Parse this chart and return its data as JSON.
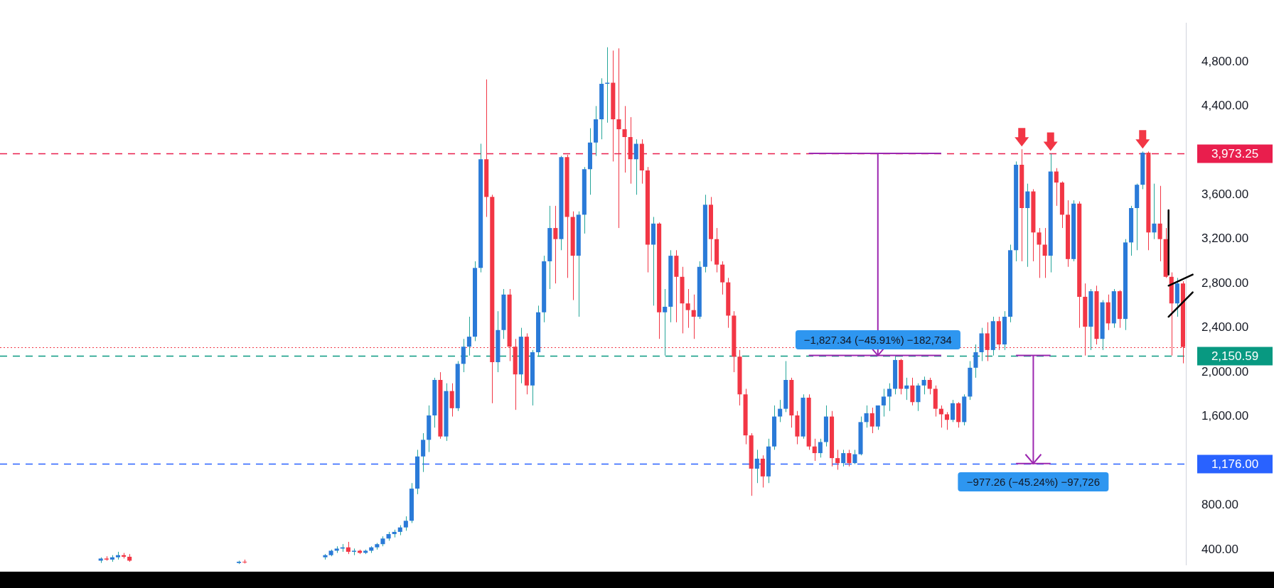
{
  "chart_data": {
    "type": "candlestick",
    "categories": [
      null,
      null,
      null,
      null,
      null,
      null,
      null,
      null,
      null,
      null,
      null,
      null,
      null,
      null,
      null,
      null,
      null,
      null,
      null,
      null,
      null,
      null,
      null,
      null,
      null,
      null,
      null,
      null,
      null,
      null,
      null,
      null,
      null,
      null,
      null,
      null,
      null,
      null,
      null,
      null,
      null,
      null,
      null,
      null,
      null,
      null,
      null,
      null,
      null,
      null,
      null,
      null,
      null,
      null,
      null,
      null,
      null,
      null,
      null,
      null,
      null,
      null,
      null,
      null,
      null,
      null,
      null,
      null,
      null,
      null,
      null,
      null,
      null,
      null,
      null,
      null,
      null,
      null,
      null,
      null,
      null,
      null,
      null,
      null,
      null,
      null,
      null,
      null,
      null,
      null,
      null,
      null,
      null,
      null,
      null,
      null,
      null,
      null,
      null,
      null,
      null,
      null,
      null,
      null,
      null,
      null,
      null,
      null,
      null,
      null,
      null,
      null,
      null,
      null,
      null,
      null,
      null,
      null,
      null,
      null,
      null,
      null,
      null,
      null,
      null,
      null,
      null,
      null,
      null,
      null,
      null,
      null,
      null,
      null,
      null,
      null,
      null,
      null,
      null,
      null,
      null,
      null,
      null,
      null,
      null,
      null,
      null,
      null,
      null,
      null,
      null,
      null,
      null,
      null,
      null,
      null,
      null,
      null,
      null,
      null,
      null,
      null,
      null,
      null,
      null,
      null,
      null,
      null,
      null,
      null,
      null,
      null,
      null,
      null,
      null,
      null,
      null,
      null,
      null,
      null,
      null,
      null,
      null,
      null,
      null,
      null,
      null,
      null,
      null,
      null,
      null,
      null,
      null,
      null,
      null,
      null,
      null,
      null,
      null,
      null,
      null,
      null,
      null,
      null,
      null,
      null
    ],
    "ohlc": [
      null,
      null,
      null,
      null,
      null,
      null,
      null,
      null,
      null,
      null,
      null,
      null,
      null,
      null,
      null,
      null,
      null,
      [
        300,
        330,
        280,
        320
      ],
      [
        320,
        340,
        300,
        310
      ],
      [
        310,
        350,
        290,
        330
      ],
      [
        330,
        380,
        310,
        350
      ],
      [
        350,
        370,
        320,
        335
      ],
      [
        335,
        360,
        290,
        300
      ],
      null,
      null,
      null,
      null,
      null,
      null,
      null,
      null,
      null,
      null,
      null,
      null,
      null,
      null,
      null,
      null,
      null,
      null,
      [
        280,
        300,
        270,
        290
      ],
      [
        290,
        310,
        275,
        285
      ],
      null,
      null,
      null,
      null,
      null,
      null,
      null,
      null,
      null,
      null,
      null,
      null,
      null,
      [
        330,
        360,
        310,
        350
      ],
      [
        350,
        400,
        340,
        390
      ],
      [
        390,
        430,
        370,
        410
      ],
      [
        410,
        450,
        380,
        420
      ],
      [
        420,
        470,
        360,
        380
      ],
      [
        380,
        410,
        350,
        390
      ],
      [
        390,
        400,
        360,
        370
      ],
      [
        370,
        400,
        360,
        390
      ],
      [
        390,
        430,
        370,
        420
      ],
      [
        420,
        460,
        400,
        450
      ],
      [
        450,
        520,
        430,
        500
      ],
      [
        500,
        560,
        480,
        540
      ],
      [
        540,
        580,
        510,
        560
      ],
      [
        560,
        620,
        530,
        600
      ],
      [
        600,
        700,
        570,
        660
      ],
      [
        660,
        1000,
        640,
        950
      ],
      [
        950,
        1300,
        900,
        1240
      ],
      [
        1240,
        1450,
        1100,
        1390
      ],
      [
        1390,
        1700,
        1280,
        1610
      ],
      [
        1610,
        1950,
        1500,
        1930
      ],
      [
        1930,
        2000,
        1400,
        1420
      ],
      [
        1420,
        1900,
        1380,
        1830
      ],
      [
        1830,
        1900,
        1600,
        1675
      ],
      [
        1675,
        2100,
        1650,
        2075
      ],
      [
        2075,
        2300,
        2000,
        2230
      ],
      [
        2230,
        2500,
        2150,
        2320
      ],
      [
        2320,
        3000,
        2280,
        2940
      ],
      [
        2940,
        4060,
        2900,
        3920
      ],
      [
        3920,
        4640,
        3400,
        3580
      ],
      [
        3580,
        3600,
        1720,
        2090
      ],
      [
        2090,
        2550,
        2000,
        2380
      ],
      [
        2380,
        2750,
        2300,
        2700
      ],
      [
        2700,
        2750,
        2100,
        2230
      ],
      [
        2230,
        2300,
        1660,
        1980
      ],
      [
        1980,
        2400,
        1900,
        2320
      ],
      [
        2320,
        2350,
        1800,
        1880
      ],
      [
        1880,
        2200,
        1700,
        2180
      ],
      [
        2180,
        2600,
        2150,
        2540
      ],
      [
        2540,
        3050,
        2450,
        3000
      ],
      [
        3000,
        3500,
        2750,
        3300
      ],
      [
        3300,
        3500,
        2800,
        3200
      ],
      [
        3200,
        3950,
        3100,
        3940
      ],
      [
        3940,
        3960,
        2850,
        3400
      ],
      [
        3400,
        3450,
        2650,
        3050
      ],
      [
        3050,
        3450,
        2500,
        3420
      ],
      [
        3420,
        3850,
        3250,
        3830
      ],
      [
        3830,
        4200,
        3600,
        4070
      ],
      [
        4070,
        4400,
        3950,
        4280
      ],
      [
        4280,
        4650,
        4100,
        4600
      ],
      [
        4600,
        4930,
        4250,
        4610
      ],
      [
        4610,
        4900,
        3900,
        4280
      ],
      [
        4280,
        4920,
        3300,
        4190
      ],
      [
        4190,
        4400,
        3800,
        4120
      ],
      [
        4120,
        4300,
        3700,
        3920
      ],
      [
        3920,
        4100,
        3600,
        4060
      ],
      [
        4060,
        4100,
        3700,
        3820
      ],
      [
        3820,
        3850,
        2900,
        3150
      ],
      [
        3150,
        3400,
        2600,
        3340
      ],
      [
        3340,
        3350,
        2300,
        2540
      ],
      [
        2540,
        2750,
        2150,
        2590
      ],
      [
        2590,
        3100,
        2450,
        3050
      ],
      [
        3050,
        3100,
        2450,
        2860
      ],
      [
        2860,
        2950,
        2350,
        2620
      ],
      [
        2620,
        2750,
        2400,
        2560
      ],
      [
        2560,
        2700,
        2300,
        2500
      ],
      [
        2500,
        3000,
        2480,
        2950
      ],
      [
        2950,
        3600,
        2900,
        3510
      ],
      [
        3510,
        3580,
        3000,
        3200
      ],
      [
        3200,
        3300,
        2900,
        2970
      ],
      [
        2970,
        3000,
        2700,
        2810
      ],
      [
        2810,
        2850,
        2400,
        2510
      ],
      [
        2510,
        2550,
        2000,
        2140
      ],
      [
        2140,
        2200,
        1700,
        1800
      ],
      [
        1800,
        1850,
        1350,
        1430
      ],
      [
        1430,
        1450,
        885,
        1130
      ],
      [
        1130,
        1300,
        1000,
        1220
      ],
      [
        1220,
        1250,
        960,
        1060
      ],
      [
        1060,
        1400,
        1000,
        1330
      ],
      [
        1330,
        1700,
        1300,
        1600
      ],
      [
        1600,
        1750,
        1550,
        1670
      ],
      [
        1670,
        2100,
        1640,
        1930
      ],
      [
        1930,
        1950,
        1500,
        1610
      ],
      [
        1610,
        1650,
        1350,
        1420
      ],
      [
        1420,
        1800,
        1400,
        1770
      ],
      [
        1770,
        1800,
        1300,
        1330
      ],
      [
        1330,
        1400,
        1200,
        1270
      ],
      [
        1270,
        1400,
        1230,
        1370
      ],
      [
        1370,
        1700,
        1330,
        1600
      ],
      [
        1600,
        1650,
        1150,
        1225
      ],
      [
        1225,
        1300,
        1120,
        1180
      ],
      [
        1180,
        1300,
        1150,
        1270
      ],
      [
        1270,
        1300,
        1150,
        1180
      ],
      [
        1180,
        1300,
        1170,
        1260
      ],
      [
        1260,
        1600,
        1250,
        1550
      ],
      [
        1550,
        1700,
        1500,
        1630
      ],
      [
        1630,
        1680,
        1450,
        1510
      ],
      [
        1510,
        1700,
        1480,
        1700
      ],
      [
        1700,
        1850,
        1600,
        1780
      ],
      [
        1780,
        1900,
        1650,
        1850
      ],
      [
        1850,
        2150,
        1800,
        2110
      ],
      [
        2110,
        2120,
        1800,
        1850
      ],
      [
        1850,
        1950,
        1750,
        1880
      ],
      [
        1880,
        1950,
        1700,
        1730
      ],
      [
        1730,
        1900,
        1650,
        1880
      ],
      [
        1880,
        1960,
        1800,
        1930
      ],
      [
        1930,
        1950,
        1800,
        1850
      ],
      [
        1850,
        1880,
        1600,
        1670
      ],
      [
        1670,
        1700,
        1500,
        1620
      ],
      [
        1620,
        1640,
        1480,
        1570
      ],
      [
        1570,
        1750,
        1550,
        1720
      ],
      [
        1720,
        1730,
        1500,
        1550
      ],
      [
        1550,
        1800,
        1520,
        1780
      ],
      [
        1780,
        2100,
        1750,
        2040
      ],
      [
        2040,
        2250,
        1950,
        2180
      ],
      [
        2180,
        2400,
        2100,
        2350
      ],
      [
        2350,
        2450,
        2100,
        2200
      ],
      [
        2200,
        2500,
        2150,
        2460
      ],
      [
        2460,
        2500,
        2200,
        2250
      ],
      [
        2250,
        2550,
        2200,
        2500
      ],
      [
        2500,
        3150,
        2450,
        3100
      ],
      [
        3100,
        3900,
        3000,
        3870
      ],
      [
        3870,
        4010,
        3000,
        3480
      ],
      [
        3480,
        3700,
        2950,
        3630
      ],
      [
        3630,
        3650,
        3000,
        3260
      ],
      [
        3260,
        3300,
        2850,
        3150
      ],
      [
        3150,
        3300,
        2850,
        3050
      ],
      [
        3050,
        3970,
        2900,
        3810
      ],
      [
        3810,
        3840,
        3500,
        3710
      ],
      [
        3710,
        3720,
        3300,
        3420
      ],
      [
        3420,
        3550,
        2950,
        3020
      ],
      [
        3020,
        3550,
        3000,
        3520
      ],
      [
        3520,
        3540,
        2400,
        2680
      ],
      [
        2680,
        2800,
        2150,
        2410
      ],
      [
        2410,
        2750,
        2200,
        2730
      ],
      [
        2730,
        2780,
        2250,
        2300
      ],
      [
        2300,
        2650,
        2200,
        2630
      ],
      [
        2630,
        2700,
        2380,
        2440
      ],
      [
        2440,
        2750,
        2400,
        2730
      ],
      [
        2730,
        2740,
        2400,
        2480
      ],
      [
        2480,
        3200,
        2380,
        3170
      ],
      [
        3170,
        3500,
        3050,
        3480
      ],
      [
        3480,
        3700,
        3100,
        3690
      ],
      [
        3690,
        3990,
        3650,
        3980
      ],
      [
        3980,
        3990,
        3100,
        3260
      ],
      [
        3260,
        3700,
        3200,
        3340
      ],
      [
        3340,
        3680,
        3000,
        3200
      ],
      [
        3200,
        3300,
        2850,
        2860
      ],
      [
        2860,
        2900,
        2150,
        2620
      ],
      [
        2620,
        2850,
        2500,
        2800
      ],
      [
        2800,
        2820,
        2080,
        2227
      ]
    ],
    "ylim": [
      260,
      5150
    ],
    "yticks": [
      {
        "value": 400,
        "label": "400.00"
      },
      {
        "value": 800,
        "label": "800.00"
      },
      {
        "value": 1600,
        "label": "1,600.00"
      },
      {
        "value": 2000,
        "label": "2,000.00"
      },
      {
        "value": 2400,
        "label": "2,400.00"
      },
      {
        "value": 2800,
        "label": "2,800.00"
      },
      {
        "value": 3200,
        "label": "3,200.00"
      },
      {
        "value": 3600,
        "label": "3,600.00"
      },
      {
        "value": 4400,
        "label": "4,400.00"
      },
      {
        "value": 4800,
        "label": "4,800.00"
      }
    ],
    "ref_lines": [
      {
        "axis": "y",
        "value": 3973.25,
        "label": "3,973.25",
        "color": "#e91e4d",
        "line_style": "dashed"
      },
      {
        "axis": "y",
        "value": 2150.59,
        "label": "2,150.59",
        "color": "#089981",
        "line_style": "dashed"
      },
      {
        "axis": "y",
        "value": 1176,
        "label": "1,176.00",
        "color": "#2962ff",
        "line_style": "dashed"
      },
      {
        "axis": "y",
        "value": 2227,
        "label": null,
        "color": "#f23645",
        "line_style": "dotted"
      }
    ],
    "annotations": [
      "−1,827.34 (−45.91%) −182,734",
      "−977.26 (−45.24%) −97,726"
    ],
    "tick_labels": "y",
    "grid": false,
    "legend": false
  }
}
